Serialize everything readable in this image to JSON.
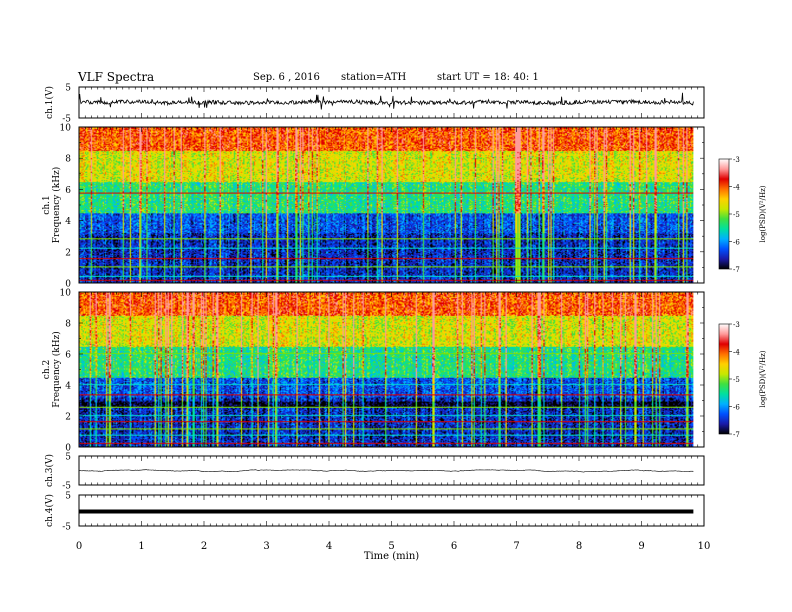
{
  "header": {
    "title": "VLF  Spectra",
    "date": "Sep. 6  , 2016",
    "station": "station=ATH",
    "start_ut": "start  UT  =    18: 40: 1"
  },
  "colors": {
    "trace": "#000000",
    "axis": "#000000",
    "colormap": [
      "#000000",
      "#1a1aa8",
      "#0050ff",
      "#00b0ff",
      "#00e0a0",
      "#40e040",
      "#c8e800",
      "#ffd000",
      "#ff7000",
      "#e00000",
      "#ff9a9a",
      "#ffffff"
    ]
  },
  "chart_data": [
    {
      "type": "line",
      "name": "ch1-waveform",
      "ylabel": "ch.1(V)",
      "ylim": [
        -5,
        5
      ],
      "ytick_labels": [
        "5",
        "-5"
      ],
      "xlim": [
        0,
        10
      ],
      "trace_mean": 0,
      "trace_amplitude": 1.2
    },
    {
      "type": "heatmap",
      "name": "ch1-spectrogram",
      "ylabel": "ch.1\nFrequency (kHz)",
      "ylabel_line1": "ch.1",
      "ylabel_line2": "Frequency  (kHz)",
      "ylim": [
        0,
        10
      ],
      "ytick_labels": [
        "0",
        "2",
        "4",
        "6",
        "8",
        "10"
      ],
      "xlim": [
        0,
        10
      ],
      "colorbar": {
        "label": "log(PSD)(V²/Hz)",
        "range": [
          -7,
          -3
        ],
        "tick_labels": [
          "-7",
          "-6",
          "-5",
          "-4",
          "-3"
        ]
      },
      "horizontal_lines_khz": [
        0.2,
        0.5,
        1.1,
        1.6,
        2.3,
        2.9,
        5.8
      ]
    },
    {
      "type": "heatmap",
      "name": "ch2-spectrogram",
      "ylabel": "ch.2\nFrequency (kHz)",
      "ylabel_line1": "ch.2",
      "ylabel_line2": "Frequency  (kHz)",
      "ylim": [
        0,
        10
      ],
      "ytick_labels": [
        "0",
        "2",
        "4",
        "6",
        "8",
        "10"
      ],
      "xlim": [
        0,
        10
      ],
      "colorbar": {
        "label": "log(PSD)(V²/Hz)",
        "range": [
          -7,
          -3
        ],
        "tick_labels": [
          "-7",
          "-6",
          "-5",
          "-4",
          "-3"
        ]
      },
      "horizontal_lines_khz": [
        0.3,
        0.8,
        1.2,
        1.7,
        2.1,
        2.6,
        3.4,
        4.1,
        6.1
      ]
    },
    {
      "type": "line",
      "name": "ch3-waveform",
      "ylabel": "ch.3(V)",
      "ylim": [
        -5,
        5
      ],
      "ytick_labels": [
        "5",
        "-5"
      ],
      "xlim": [
        0,
        10
      ],
      "trace_mean": 0,
      "trace_amplitude": 0.02
    },
    {
      "type": "line",
      "name": "ch4-waveform",
      "ylabel": "ch.4(V)",
      "ylim": [
        -5,
        5
      ],
      "ytick_labels": [
        "5",
        "-5"
      ],
      "xlim": [
        0,
        10
      ],
      "trace_mean": 0,
      "trace_amplitude": 0.3
    }
  ],
  "x_axis": {
    "label": "Time  (min)",
    "tick_labels": [
      "0",
      "1",
      "2",
      "3",
      "4",
      "5",
      "6",
      "7",
      "8",
      "9",
      "10"
    ],
    "range": [
      0,
      10
    ],
    "data_extent": 9.83
  }
}
